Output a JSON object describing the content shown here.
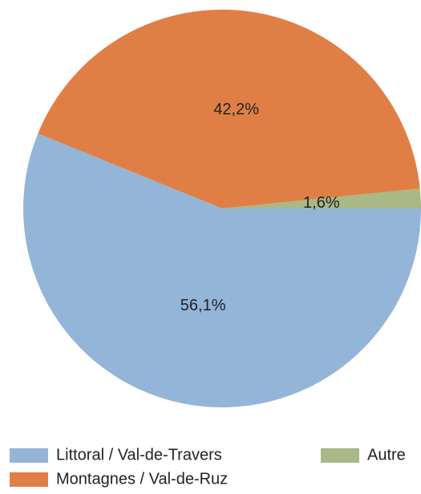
{
  "chart_data": {
    "type": "pie",
    "categories": [
      "Littoral / Val-de-Travers",
      "Montagnes / Val-de-Ruz",
      "Autre"
    ],
    "values": [
      56.1,
      42.2,
      1.6
    ],
    "value_labels": [
      "56,1%",
      "42,2%",
      "1,6%"
    ],
    "colors": [
      "#93b5d8",
      "#e07f45",
      "#a9b887"
    ],
    "legend": "bottom"
  }
}
